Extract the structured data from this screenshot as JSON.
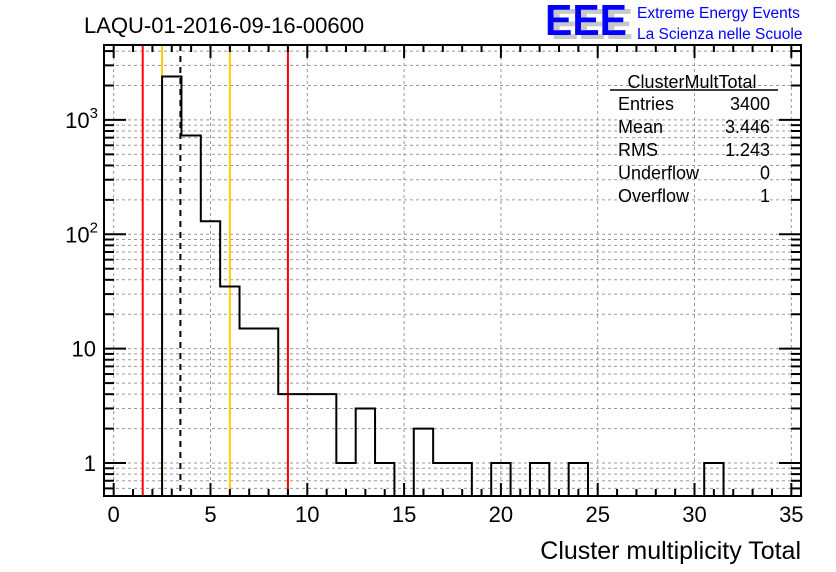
{
  "chart_data": {
    "type": "bar",
    "style": "step-histogram",
    "title": "LAQU-01-2016-09-16-00600",
    "xlabel": "Cluster multiplicity Total",
    "ylabel": "",
    "xlim": [
      -0.5,
      35.5
    ],
    "ylim": [
      0.515,
      4520
    ],
    "yscale": "log",
    "grid": true,
    "bin_width": 1,
    "bin_centers": [
      3,
      4,
      5,
      6,
      7,
      8,
      9,
      10,
      11,
      12,
      13,
      14,
      15,
      16,
      17,
      18,
      19,
      20,
      21,
      22,
      23,
      24,
      25,
      26,
      27,
      28,
      29,
      30,
      31
    ],
    "values": [
      2400,
      730,
      130,
      35,
      15,
      15,
      4,
      4,
      4,
      1,
      3,
      1,
      0,
      2,
      1,
      1,
      0,
      1,
      0,
      1,
      0,
      1,
      0,
      0,
      0,
      0,
      0,
      0,
      1
    ],
    "x_ticks": [
      0,
      5,
      10,
      15,
      20,
      25,
      30,
      35
    ],
    "x_tick_labels": [
      "0",
      "5",
      "10",
      "15",
      "20",
      "25",
      "30",
      "35"
    ],
    "y_ticks": [
      1,
      10,
      100,
      1000
    ],
    "y_tick_labels": [
      {
        "base": "1",
        "exp": ""
      },
      {
        "base": "10",
        "exp": ""
      },
      {
        "base": "10",
        "exp": "2"
      },
      {
        "base": "10",
        "exp": "3"
      }
    ],
    "vertical_lines": [
      {
        "x": 1.5,
        "color": "#ff0000",
        "style": "solid"
      },
      {
        "x": 2.5,
        "color": "#ffcc00",
        "style": "solid"
      },
      {
        "x": 3.446,
        "color": "#000000",
        "style": "dashed"
      },
      {
        "x": 6.0,
        "color": "#ffcc00",
        "style": "solid"
      },
      {
        "x": 9.0,
        "color": "#ff0000",
        "style": "solid"
      }
    ],
    "stats": {
      "name": "ClusterMultTotal",
      "rows": [
        {
          "label": "Entries",
          "value": "3400"
        },
        {
          "label": "Mean",
          "value": "3.446"
        },
        {
          "label": "RMS",
          "value": "1.243"
        },
        {
          "label": "Underflow",
          "value": "0"
        },
        {
          "label": "Overflow",
          "value": "1"
        }
      ]
    }
  },
  "logo": {
    "mark": "EEE",
    "line1": "Extreme Energy Events",
    "line2": "La Scienza nelle Scuole",
    "color": "#0000ff"
  }
}
